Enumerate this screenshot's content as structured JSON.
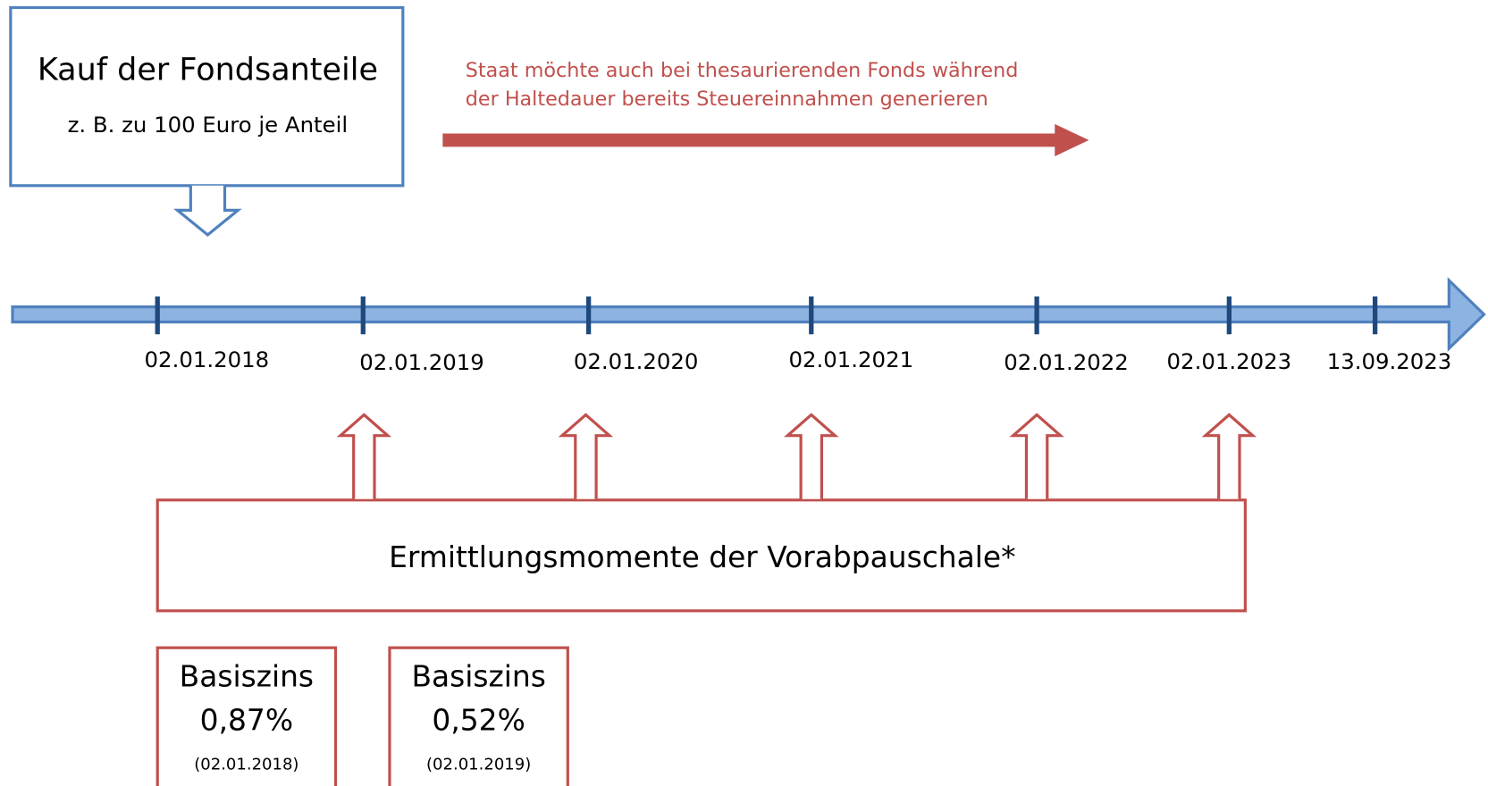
{
  "purchase": {
    "title": "Kauf der Fondsanteile",
    "subtitle": "z. B. zu 100 Euro je Anteil"
  },
  "note": {
    "lines": [
      "Staat möchte auch bei thesaurierenden Fonds während",
      "der Haltedauer bereits Steuereinnahmen generieren"
    ]
  },
  "timeline": {
    "dates": [
      "02.01.2018",
      "02.01.2019",
      "02.01.2020",
      "02.01.2021",
      "02.01.2022",
      "02.01.2023",
      "13.09.2023"
    ]
  },
  "determination": {
    "label": "Ermittlungsmomente der Vorabpauschale*"
  },
  "rates": [
    {
      "label": "Basiszins",
      "value": "0,87%",
      "date": "(02.01.2018)"
    },
    {
      "label": "Basiszins",
      "value": "0,52%",
      "date": "(02.01.2019)"
    }
  ]
}
